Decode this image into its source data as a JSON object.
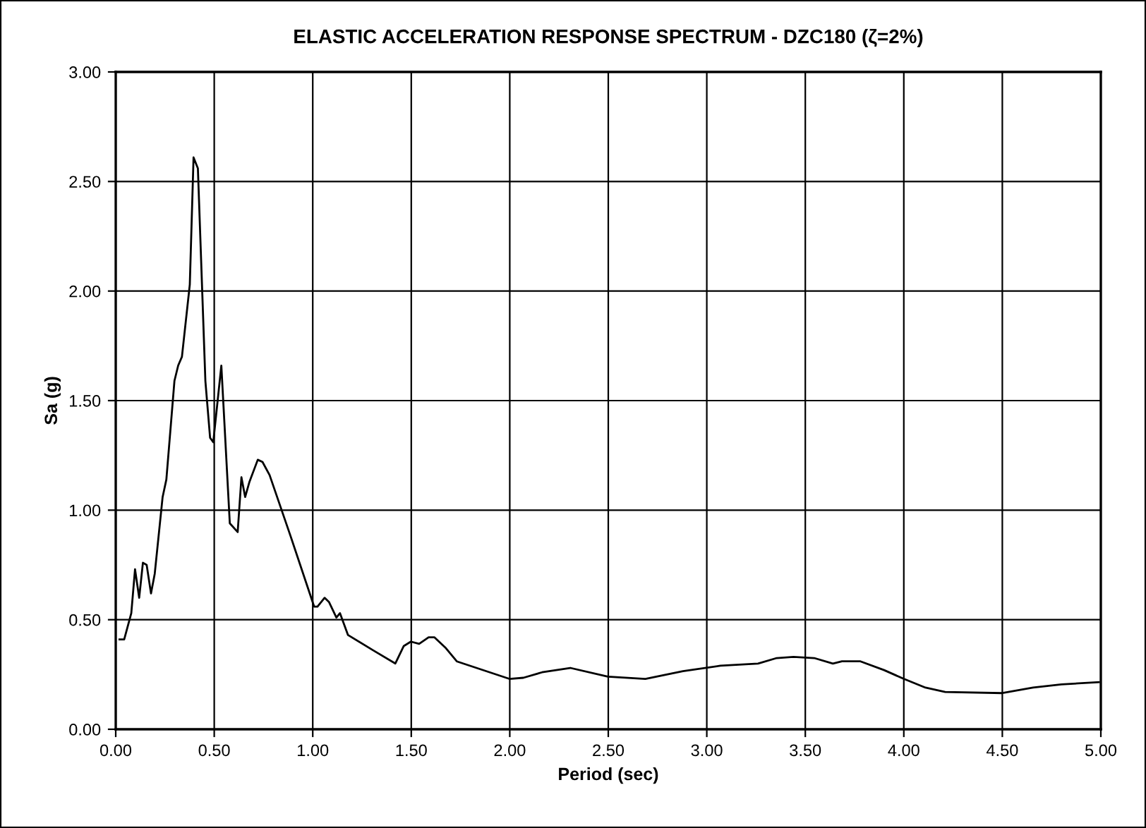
{
  "chart_data": {
    "type": "line",
    "title": "ELASTIC ACCELERATION RESPONSE SPECTRUM - DZC180 (ζ=2%)",
    "xlabel": "Period (sec)",
    "ylabel": "Sa (g)",
    "x": [
      0.019,
      0.043,
      0.079,
      0.098,
      0.119,
      0.138,
      0.157,
      0.179,
      0.198,
      0.238,
      0.257,
      0.298,
      0.317,
      0.336,
      0.376,
      0.395,
      0.417,
      0.455,
      0.479,
      0.495,
      0.536,
      0.579,
      0.619,
      0.638,
      0.657,
      0.679,
      0.721,
      0.745,
      0.781,
      0.888,
      1.007,
      1.024,
      1.06,
      1.083,
      1.12,
      1.138,
      1.179,
      1.307,
      1.419,
      1.462,
      1.498,
      1.54,
      1.588,
      1.617,
      1.676,
      1.731,
      1.998,
      2.069,
      2.164,
      2.307,
      2.498,
      2.688,
      2.879,
      3.069,
      3.26,
      3.355,
      3.44,
      3.545,
      3.64,
      3.686,
      3.78,
      3.9,
      4.0,
      4.11,
      4.21,
      4.5,
      4.656,
      4.8,
      4.99
    ],
    "series": [
      {
        "color": "#000000",
        "values": [
          0.41,
          0.41,
          0.53,
          0.73,
          0.6,
          0.76,
          0.75,
          0.62,
          0.71,
          1.06,
          1.14,
          1.59,
          1.66,
          1.7,
          2.03,
          2.61,
          2.56,
          1.59,
          1.33,
          1.31,
          1.66,
          0.94,
          0.9,
          1.15,
          1.06,
          1.13,
          1.23,
          1.22,
          1.16,
          0.88,
          0.56,
          0.56,
          0.6,
          0.58,
          0.51,
          0.53,
          0.43,
          0.36,
          0.3,
          0.38,
          0.4,
          0.39,
          0.42,
          0.42,
          0.37,
          0.31,
          0.23,
          0.235,
          0.26,
          0.28,
          0.24,
          0.23,
          0.265,
          0.29,
          0.3,
          0.325,
          0.33,
          0.325,
          0.3,
          0.31,
          0.31,
          0.27,
          0.23,
          0.19,
          0.17,
          0.165,
          0.19,
          0.205,
          0.215
        ]
      }
    ],
    "xlim": [
      0,
      5
    ],
    "xticks": [
      {
        "value": 0,
        "label": "0.00"
      },
      {
        "value": 0.5,
        "label": "0.50"
      },
      {
        "value": 1,
        "label": "1.00"
      },
      {
        "value": 1.5,
        "label": "1.50"
      },
      {
        "value": 2,
        "label": "2.00"
      },
      {
        "value": 2.5,
        "label": "2.50"
      },
      {
        "value": 3,
        "label": "3.00"
      },
      {
        "value": 3.5,
        "label": "3.50"
      },
      {
        "value": 4,
        "label": "4.00"
      },
      {
        "value": 4.5,
        "label": "4.50"
      },
      {
        "value": 5,
        "label": "5.00"
      }
    ],
    "ylim": [
      0,
      3
    ],
    "yticks": [
      {
        "value": 0,
        "label": "0.00"
      },
      {
        "value": 0.5,
        "label": "0.50"
      },
      {
        "value": 1,
        "label": "1.00"
      },
      {
        "value": 1.5,
        "label": "1.50"
      },
      {
        "value": 2,
        "label": "2.00"
      },
      {
        "value": 2.5,
        "label": "2.50"
      },
      {
        "value": 3,
        "label": "3.00"
      }
    ],
    "grid": true,
    "marker": "none",
    "line_style": "solid"
  }
}
